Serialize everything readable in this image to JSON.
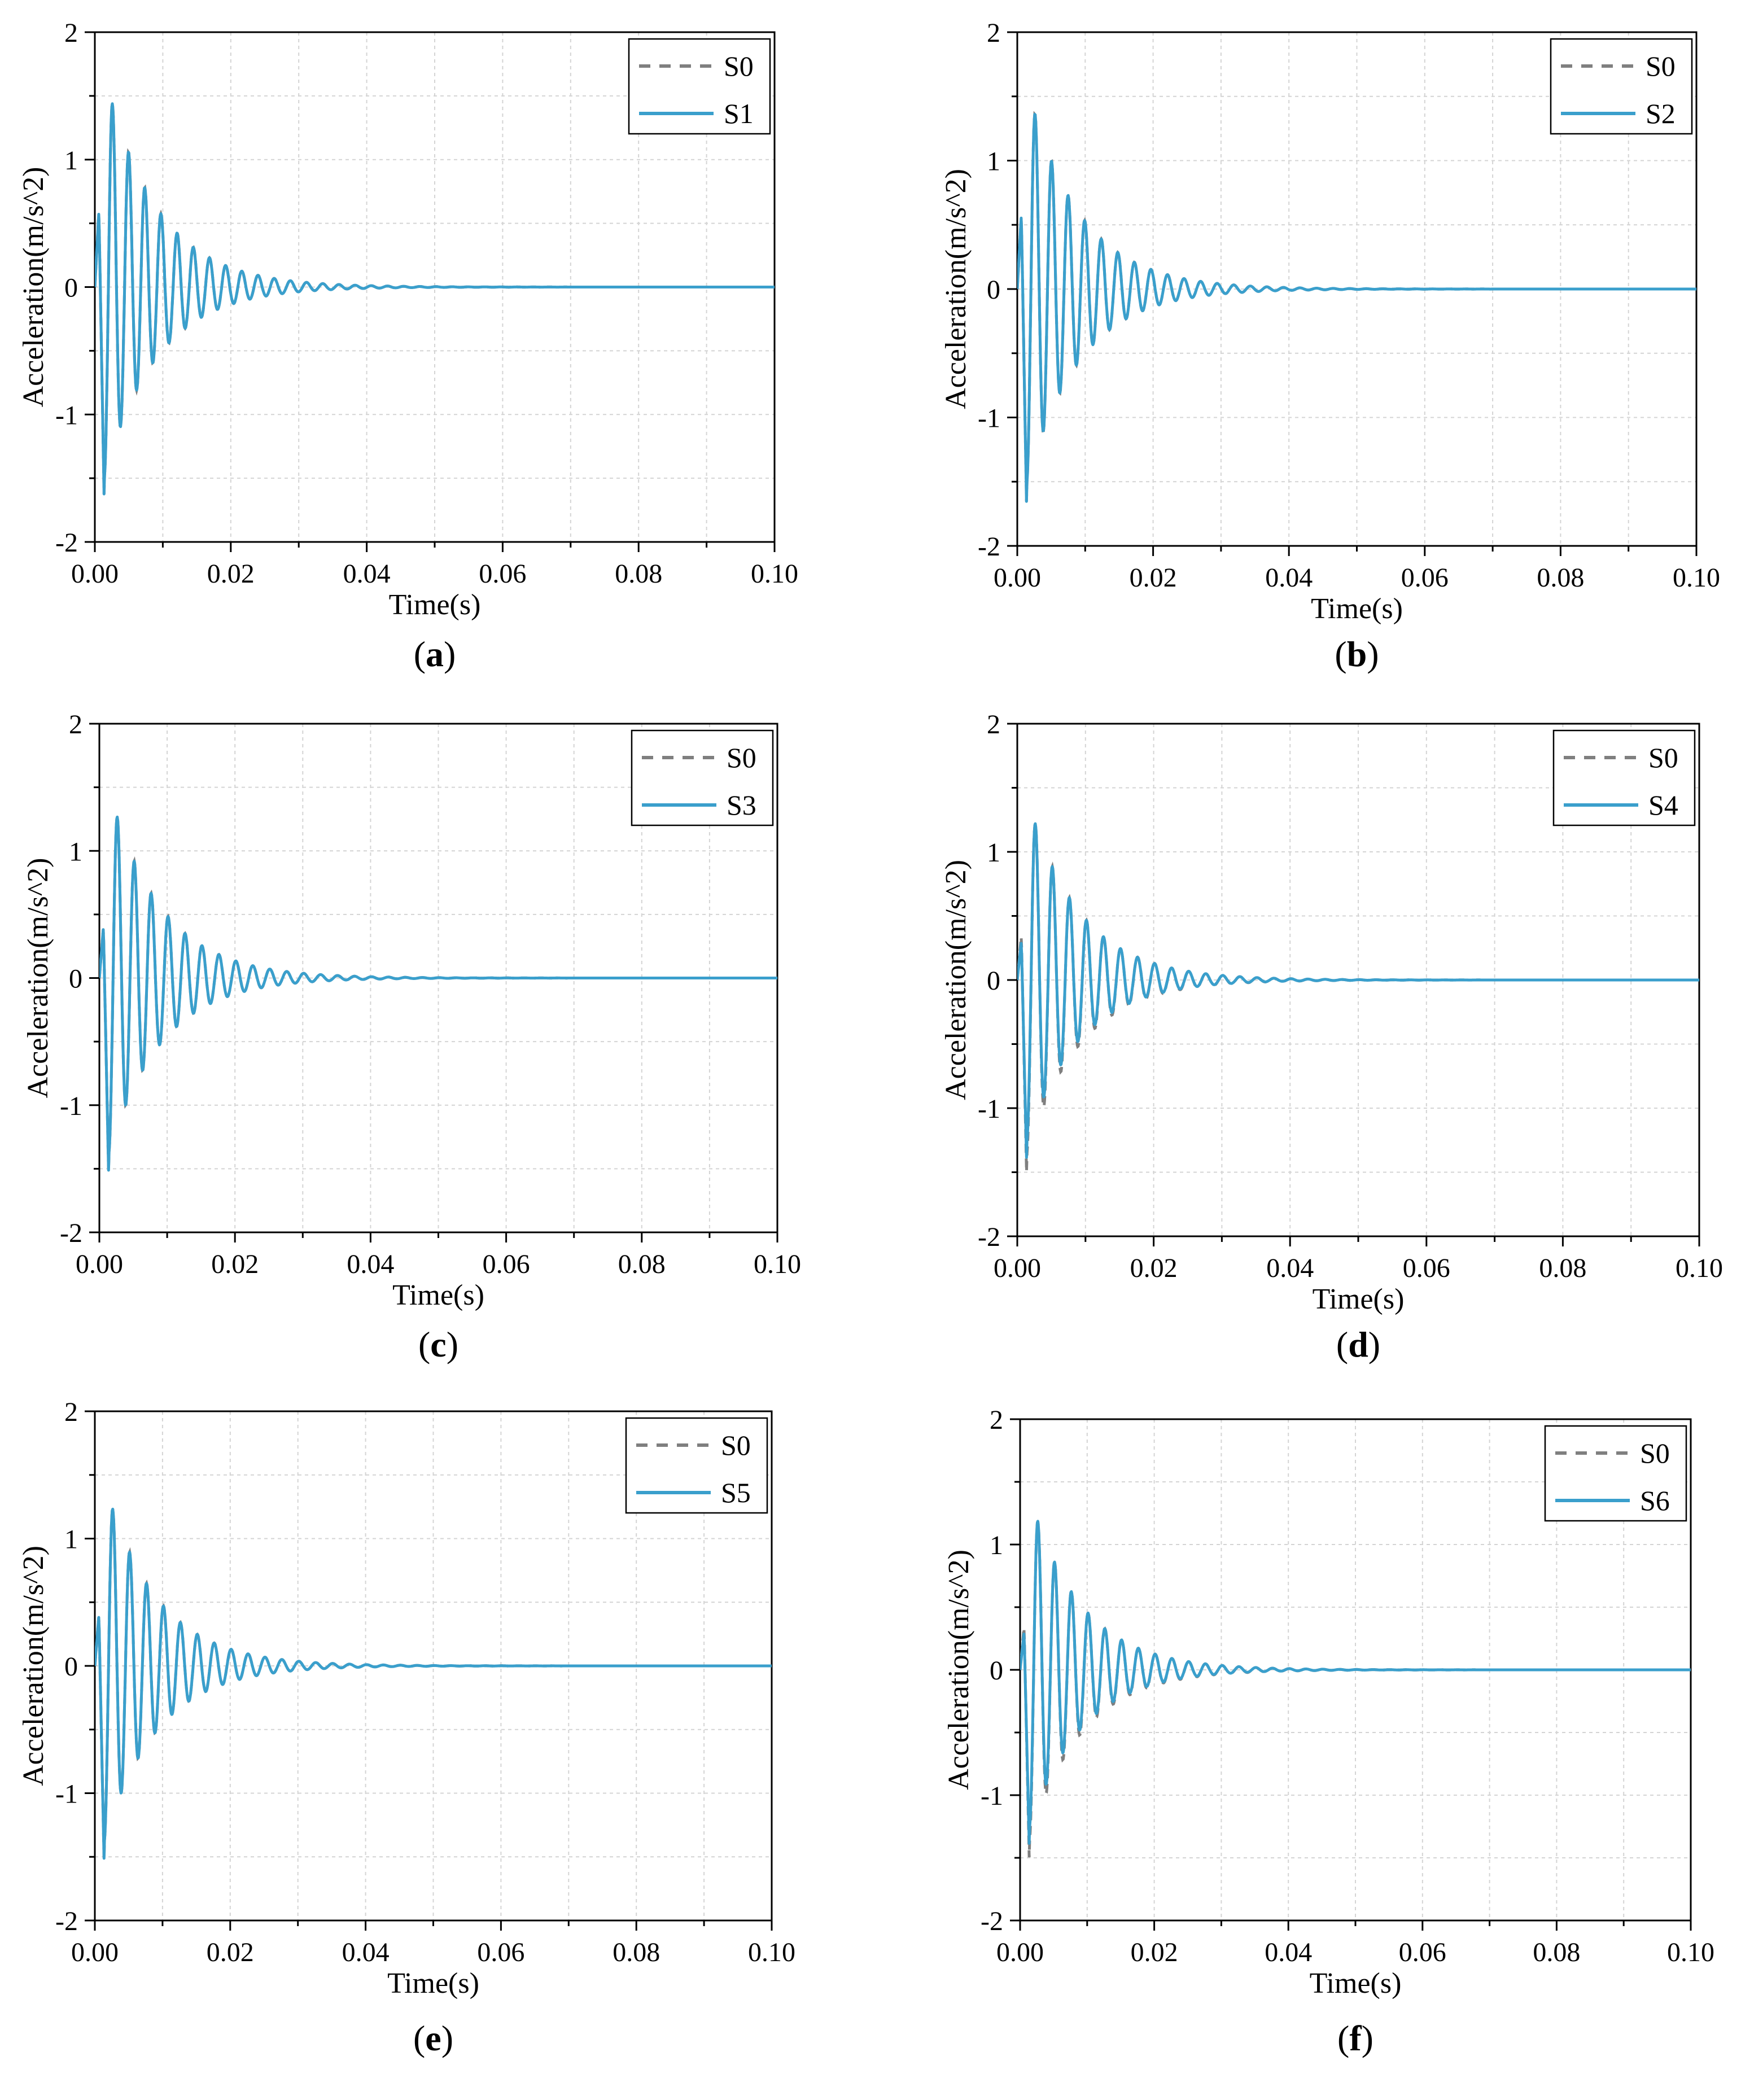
{
  "figure": {
    "colors": {
      "reference": "#7f7f7f",
      "series": "#3a9fcc"
    }
  },
  "chart_data": [
    {
      "type": "line",
      "panel": "a",
      "label_open": "(",
      "label_bold": "a",
      "label_close": ")",
      "xlabel": "Time(s)",
      "ylabel": "Acceleration(m/s^2)",
      "xlim": [
        0,
        0.1
      ],
      "ylim": [
        -2,
        2
      ],
      "x_ticks": [
        "0.00",
        "0.02",
        "0.04",
        "0.06",
        "0.08",
        "0.10"
      ],
      "y_ticks": [
        "-2",
        "-1",
        "0",
        "1",
        "2"
      ],
      "legend": [
        "S0",
        "S1"
      ],
      "series": [
        {
          "name": "S0",
          "style": "dashed",
          "first_peak": 0.6,
          "first_trough": -1.75,
          "peak": 1.24,
          "decay": 0.11,
          "freq_hz": 420
        },
        {
          "name": "S1",
          "style": "solid",
          "first_peak": 0.6,
          "first_trough": -1.75,
          "peak": 1.24,
          "decay": 0.11,
          "freq_hz": 420
        }
      ]
    },
    {
      "type": "line",
      "panel": "b",
      "label_open": "(",
      "label_bold": "b",
      "label_close": ")",
      "xlabel": "Time(s)",
      "ylabel": "Acceleration(m/s^2)",
      "xlim": [
        0,
        0.1
      ],
      "ylim": [
        -2,
        2
      ],
      "x_ticks": [
        "0.00",
        "0.02",
        "0.04",
        "0.06",
        "0.08",
        "0.10"
      ],
      "y_ticks": [
        "-2",
        "-1",
        "0",
        "1",
        "2"
      ],
      "legend": [
        "S0",
        "S2"
      ],
      "series": [
        {
          "name": "S0",
          "style": "dashed",
          "first_peak": 0.58,
          "first_trough": -1.78,
          "peak": 1.18,
          "decay": 0.11,
          "freq_hz": 410
        },
        {
          "name": "S2",
          "style": "solid",
          "first_peak": 0.58,
          "first_trough": -1.78,
          "peak": 1.18,
          "decay": 0.11,
          "freq_hz": 410
        }
      ]
    },
    {
      "type": "line",
      "panel": "c",
      "label_open": "(",
      "label_bold": "c",
      "label_close": ")",
      "xlabel": "Time(s)",
      "ylabel": "Acceleration(m/s^2)",
      "xlim": [
        0,
        0.1
      ],
      "ylim": [
        -2,
        2
      ],
      "x_ticks": [
        "0.00",
        "0.02",
        "0.04",
        "0.06",
        "0.08",
        "0.10"
      ],
      "y_ticks": [
        "-2",
        "-1",
        "0",
        "1",
        "2"
      ],
      "legend": [
        "S0",
        "S3"
      ],
      "series": [
        {
          "name": "S0",
          "style": "dashed",
          "first_peak": 0.4,
          "first_trough": -1.62,
          "peak": 1.1,
          "decay": 0.11,
          "freq_hz": 400
        },
        {
          "name": "S3",
          "style": "solid",
          "first_peak": 0.4,
          "first_trough": -1.62,
          "peak": 1.1,
          "decay": 0.11,
          "freq_hz": 400
        }
      ]
    },
    {
      "type": "line",
      "panel": "d",
      "label_open": "(",
      "label_bold": "d",
      "label_close": ")",
      "xlabel": "Time(s)",
      "ylabel": "Acceleration(m/s^2)",
      "xlim": [
        0,
        0.1
      ],
      "ylim": [
        -2,
        2
      ],
      "x_ticks": [
        "0.00",
        "0.02",
        "0.04",
        "0.06",
        "0.08",
        "0.10"
      ],
      "y_ticks": [
        "-2",
        "-1",
        "0",
        "1",
        "2"
      ],
      "legend": [
        "S0",
        "S4"
      ],
      "series": [
        {
          "name": "S0",
          "style": "dashed",
          "first_peak": 0.35,
          "first_trough": -1.6,
          "peak": 1.06,
          "decay": 0.11,
          "freq_hz": 400
        },
        {
          "name": "S4",
          "style": "solid",
          "first_peak": 0.3,
          "first_trough": -1.48,
          "peak": 1.06,
          "decay": 0.11,
          "freq_hz": 400
        }
      ]
    },
    {
      "type": "line",
      "panel": "e",
      "label_open": "(",
      "label_bold": "e",
      "label_close": ")",
      "xlabel": "Time(s)",
      "ylabel": "Acceleration(m/s^2)",
      "xlim": [
        0,
        0.1
      ],
      "ylim": [
        -2,
        2
      ],
      "x_ticks": [
        "0.00",
        "0.02",
        "0.04",
        "0.06",
        "0.08",
        "0.10"
      ],
      "y_ticks": [
        "-2",
        "-1",
        "0",
        "1",
        "2"
      ],
      "legend": [
        "S0",
        "S5"
      ],
      "series": [
        {
          "name": "S0",
          "style": "dashed",
          "first_peak": 0.4,
          "first_trough": -1.62,
          "peak": 1.07,
          "decay": 0.11,
          "freq_hz": 400
        },
        {
          "name": "S5",
          "style": "solid",
          "first_peak": 0.4,
          "first_trough": -1.62,
          "peak": 1.07,
          "decay": 0.11,
          "freq_hz": 400
        }
      ]
    },
    {
      "type": "line",
      "panel": "f",
      "label_open": "(",
      "label_bold": "f",
      "label_close": ")",
      "xlabel": "Time(s)",
      "ylabel": "Acceleration(m/s^2)",
      "xlim": [
        0,
        0.1
      ],
      "ylim": [
        -2,
        2
      ],
      "x_ticks": [
        "0.00",
        "0.02",
        "0.04",
        "0.06",
        "0.08",
        "0.10"
      ],
      "y_ticks": [
        "-2",
        "-1",
        "0",
        "1",
        "2"
      ],
      "legend": [
        "S0",
        "S6"
      ],
      "series": [
        {
          "name": "S0",
          "style": "dashed",
          "first_peak": 0.35,
          "first_trough": -1.6,
          "peak": 1.03,
          "decay": 0.11,
          "freq_hz": 400
        },
        {
          "name": "S6",
          "style": "solid",
          "first_peak": 0.3,
          "first_trough": -1.48,
          "peak": 1.03,
          "decay": 0.11,
          "freq_hz": 400
        }
      ]
    }
  ]
}
